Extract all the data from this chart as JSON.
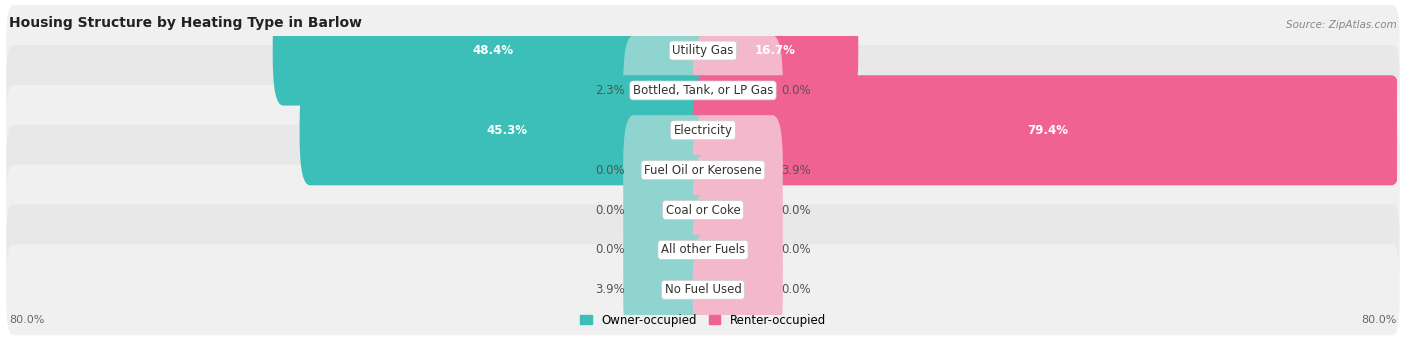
{
  "title": "Housing Structure by Heating Type in Barlow",
  "source": "Source: ZipAtlas.com",
  "categories": [
    "Utility Gas",
    "Bottled, Tank, or LP Gas",
    "Electricity",
    "Fuel Oil or Kerosene",
    "Coal or Coke",
    "All other Fuels",
    "No Fuel Used"
  ],
  "owner_values": [
    48.4,
    2.3,
    45.3,
    0.0,
    0.0,
    0.0,
    3.9
  ],
  "renter_values": [
    16.7,
    0.0,
    79.4,
    3.9,
    0.0,
    0.0,
    0.0
  ],
  "owner_color_dark": "#3bbfb8",
  "renter_color_dark": "#f06292",
  "owner_color_light": "#90d4d0",
  "renter_color_light": "#f4b8cc",
  "row_bg_odd": "#f0f0f0",
  "row_bg_even": "#e8e8e8",
  "x_min": -80.0,
  "x_max": 80.0,
  "min_bar_width": 8.0,
  "label_fontsize": 8.5,
  "title_fontsize": 10,
  "source_fontsize": 7.5
}
